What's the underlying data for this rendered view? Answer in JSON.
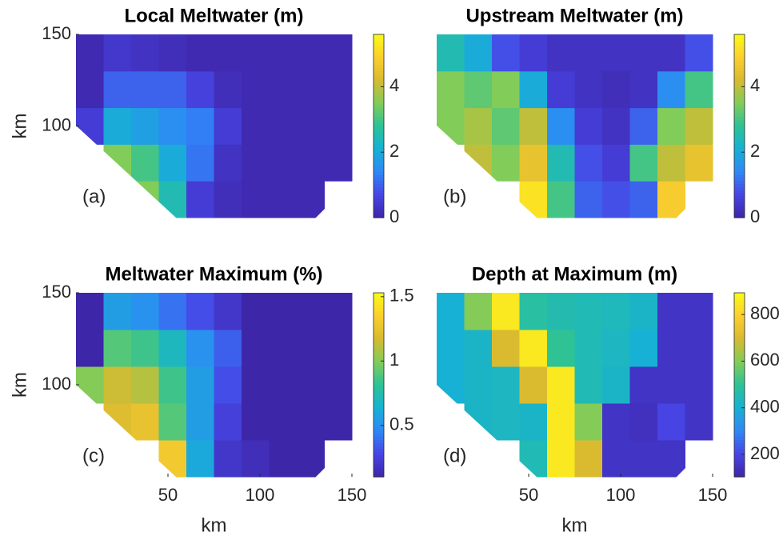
{
  "colormap": [
    "#3e26a8",
    "#4745e5",
    "#2f88f6",
    "#16b1d4",
    "#2dc296",
    "#82cc59",
    "#d8ba30",
    "#fccf2e",
    "#f9fb15"
  ],
  "chart_data": [
    {
      "type": "heatmap",
      "title": "Local Meltwater (m)",
      "panel_label": "(a)",
      "ylabel": "km",
      "xlim": [
        0,
        150
      ],
      "ylim": [
        50,
        150
      ],
      "yticks": [
        100,
        150
      ],
      "x_edges": [
        0,
        15,
        30,
        45,
        60,
        75,
        90,
        105,
        120,
        135,
        150
      ],
      "y_edges": [
        50,
        70,
        90,
        110,
        130,
        150
      ],
      "z": [
        [
          null,
          null,
          3.5,
          2.5,
          0.5,
          0.2,
          0.1,
          0.1,
          0.1,
          null
        ],
        [
          null,
          3.5,
          3,
          2,
          1.2,
          0.3,
          0.1,
          0.1,
          0.1,
          0.1
        ],
        [
          0.5,
          2,
          1.8,
          1.5,
          1.3,
          0.5,
          0.1,
          0.1,
          0.1,
          0.1
        ],
        [
          0.1,
          1,
          1,
          1,
          0.6,
          0.2,
          0.1,
          0.1,
          0.1,
          0.1
        ],
        [
          0.1,
          0.4,
          0.3,
          0.2,
          0.1,
          0.1,
          0.1,
          0.1,
          0.1,
          0.1
        ]
      ],
      "clim": [
        0,
        5.6
      ],
      "cticks": [
        0,
        2,
        4
      ]
    },
    {
      "type": "heatmap",
      "title": "Upstream Meltwater (m)",
      "panel_label": "(b)",
      "xlim": [
        0,
        150
      ],
      "ylim": [
        50,
        150
      ],
      "x_edges": [
        0,
        15,
        30,
        45,
        60,
        75,
        90,
        105,
        120,
        135,
        150
      ],
      "y_edges": [
        50,
        70,
        90,
        110,
        130,
        150
      ],
      "z": [
        [
          null,
          null,
          null,
          5.2,
          3,
          1,
          0.8,
          1,
          4.8,
          null
        ],
        [
          null,
          4,
          3.5,
          4.5,
          2.5,
          0.8,
          0.5,
          3,
          4,
          4.5
        ],
        [
          3.5,
          3.8,
          3.2,
          4,
          1.5,
          0.5,
          0.3,
          1,
          3.5,
          4
        ],
        [
          3.5,
          3.2,
          3.5,
          2,
          0.5,
          0.3,
          0.2,
          0.3,
          1.5,
          3
        ],
        [
          2.5,
          2,
          0.8,
          0.5,
          0.3,
          0.3,
          0.3,
          0.3,
          0.3,
          0.8
        ]
      ],
      "clim": [
        0,
        5.6
      ],
      "cticks": [
        0,
        2,
        4
      ]
    },
    {
      "type": "heatmap",
      "title": "Meltwater Maximum (%)",
      "panel_label": "(c)",
      "xlabel": "km",
      "ylabel": "km",
      "xlim": [
        0,
        150
      ],
      "ylim": [
        50,
        150
      ],
      "xticks": [
        50,
        100,
        150
      ],
      "yticks": [
        100,
        150
      ],
      "x_edges": [
        0,
        15,
        30,
        45,
        60,
        75,
        90,
        105,
        120,
        135,
        150
      ],
      "y_edges": [
        50,
        70,
        90,
        110,
        130,
        150
      ],
      "z": [
        [
          null,
          null,
          null,
          1.3,
          0.6,
          0.2,
          0.15,
          0.1,
          0.1,
          null
        ],
        [
          null,
          1.2,
          1.25,
          0.9,
          0.55,
          0.25,
          0.1,
          0.1,
          0.1,
          0.1
        ],
        [
          1,
          1.15,
          1.1,
          0.85,
          0.55,
          0.3,
          0.1,
          0.1,
          0.1,
          0.1
        ],
        [
          0.1,
          0.9,
          0.85,
          0.7,
          0.5,
          0.35,
          0.1,
          0.1,
          0.1,
          0.1
        ],
        [
          0.1,
          0.55,
          0.5,
          0.4,
          0.3,
          0.2,
          0.1,
          0.1,
          0.1,
          0.1
        ]
      ],
      "clim": [
        0.1,
        1.53
      ],
      "cticks": [
        0.5,
        1,
        1.5
      ]
    },
    {
      "type": "heatmap",
      "title": "Depth at Maximum (m)",
      "panel_label": "(d)",
      "xlabel": "km",
      "xlim": [
        0,
        150
      ],
      "ylim": [
        50,
        150
      ],
      "xticks": [
        50,
        100,
        150
      ],
      "x_edges": [
        0,
        15,
        30,
        45,
        60,
        75,
        90,
        105,
        120,
        135,
        150
      ],
      "y_edges": [
        50,
        70,
        90,
        110,
        130,
        150
      ],
      "z": [
        [
          null,
          null,
          null,
          450,
          850,
          700,
          150,
          150,
          150,
          null
        ],
        [
          null,
          420,
          430,
          420,
          850,
          600,
          150,
          140,
          200,
          150
        ],
        [
          400,
          420,
          430,
          700,
          850,
          450,
          420,
          150,
          150,
          150
        ],
        [
          400,
          420,
          700,
          850,
          500,
          450,
          430,
          400,
          150,
          150
        ],
        [
          400,
          600,
          850,
          480,
          460,
          450,
          440,
          420,
          150,
          150
        ]
      ],
      "clim": [
        104,
        893
      ],
      "cticks": [
        200,
        400,
        600,
        800
      ]
    }
  ]
}
